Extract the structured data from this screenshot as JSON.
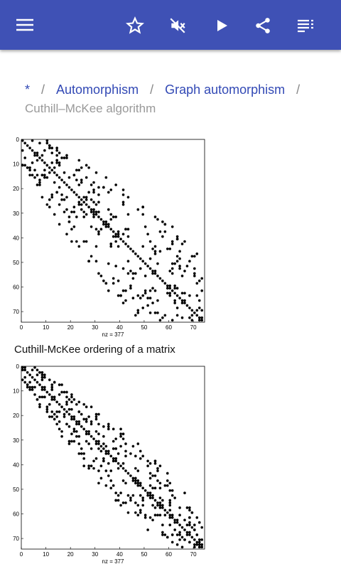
{
  "breadcrumb": [
    "*",
    "Automorphism",
    "Graph automorphism"
  ],
  "current_page": "Cuthill–McKee algorithm",
  "figures": [
    {
      "xticks": [
        0,
        10,
        20,
        30,
        40,
        50,
        60,
        70
      ],
      "yticks": [
        0,
        10,
        20,
        30,
        40,
        50,
        60,
        70
      ],
      "xlabel": "nz = 377",
      "caption": "Cuthill-McKee ordering of a matrix"
    },
    {
      "xticks": [
        0,
        10,
        20,
        30,
        40,
        50,
        60,
        70
      ],
      "yticks": [
        0,
        10,
        20,
        30,
        40,
        50,
        60,
        70
      ],
      "xlabel": "nz = 377"
    }
  ]
}
